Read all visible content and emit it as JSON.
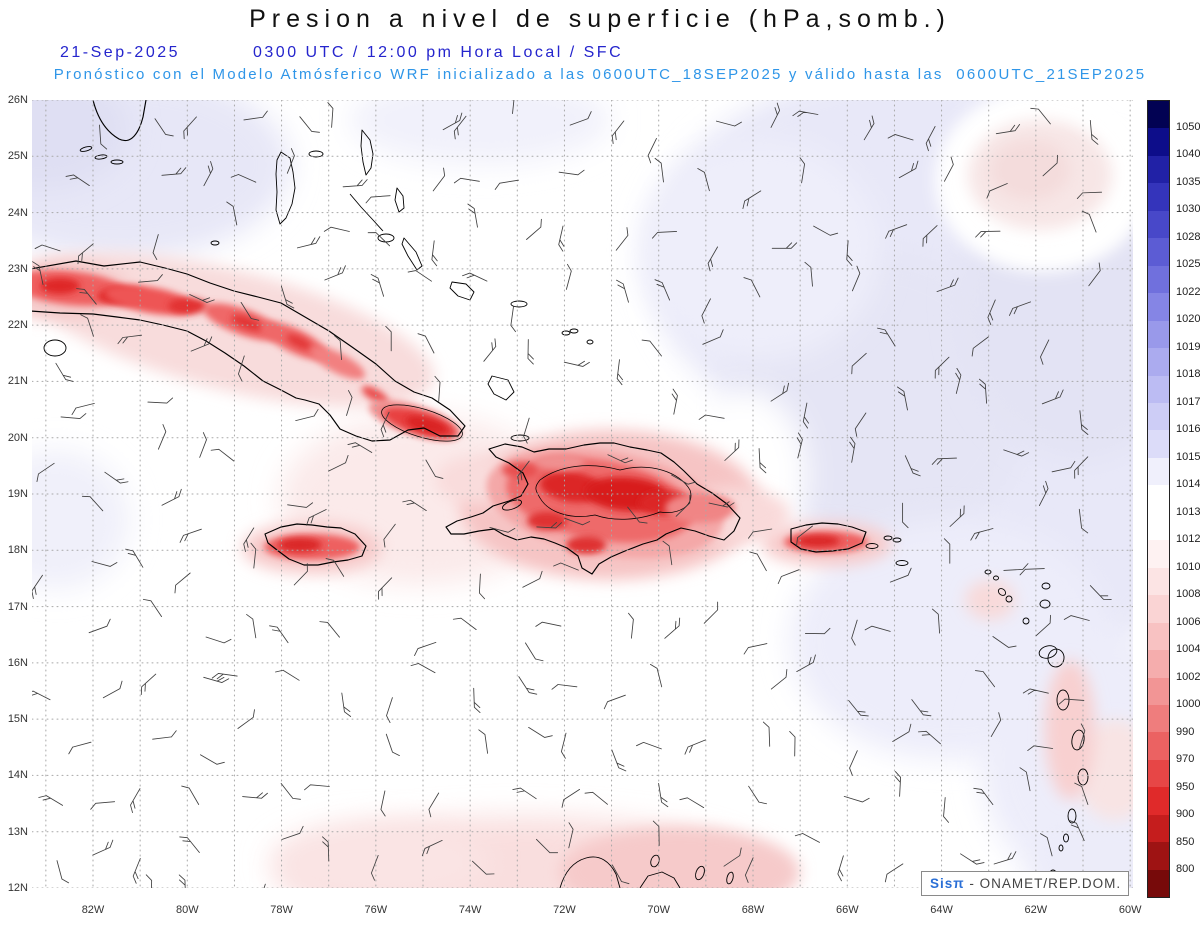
{
  "title": "Presion a nivel de superficie (hPa,somb.)",
  "header": {
    "date": "21-Sep-2025",
    "valid_time": "0300 UTC / 12:00 pm Hora Local / SFC",
    "forecast": "Pronóstico con el Modelo Atmósferico WRF inicializado a las 0600UTC_18SEP2025 y válido hasta las  0600UTC_21SEP2025"
  },
  "axes": {
    "lat_labels": [
      "26N",
      "25N",
      "24N",
      "23N",
      "22N",
      "21N",
      "20N",
      "19N",
      "18N",
      "17N",
      "16N",
      "15N",
      "14N",
      "13N",
      "12N"
    ],
    "lon_labels": [
      "82W",
      "80W",
      "78W",
      "76W",
      "74W",
      "72W",
      "70W",
      "68W",
      "66W",
      "64W",
      "62W",
      "60W"
    ]
  },
  "colorbar": {
    "tick_labels": [
      "1050",
      "1040",
      "1035",
      "1030",
      "1028",
      "1025",
      "1022",
      "1020",
      "1019",
      "1018",
      "1017",
      "1016",
      "1015",
      "1014",
      "1013",
      "1012",
      "1010",
      "1008",
      "1006",
      "1004",
      "1002",
      "1000",
      "990",
      "970",
      "950",
      "900",
      "850",
      "800"
    ],
    "cell_colors": [
      "#020253",
      "#0d0d8a",
      "#2121a6",
      "#3434bb",
      "#4848c9",
      "#5c5cd4",
      "#7070dd",
      "#8585e5",
      "#9999ea",
      "#ababef",
      "#bcbcf3",
      "#cdcdf6",
      "#dcdcf9",
      "#f0f0fc",
      "#ffffff",
      "#ffffff",
      "#fef2f2",
      "#fce4e4",
      "#fad4d4",
      "#f8c2c2",
      "#f5adad",
      "#f29595",
      "#ef7d7d",
      "#eb6262",
      "#e74646",
      "#e02a2a",
      "#c51d1d",
      "#9e1313",
      "#770a0a"
    ]
  },
  "watermark": {
    "brand": "Sisπ",
    "org": " - ONAMET/REP.DOM."
  },
  "colors": {
    "datetime_blue": "#2525cd",
    "forecast_blue": "#2f96e8",
    "watermark_blue": "#2a6fd6"
  }
}
